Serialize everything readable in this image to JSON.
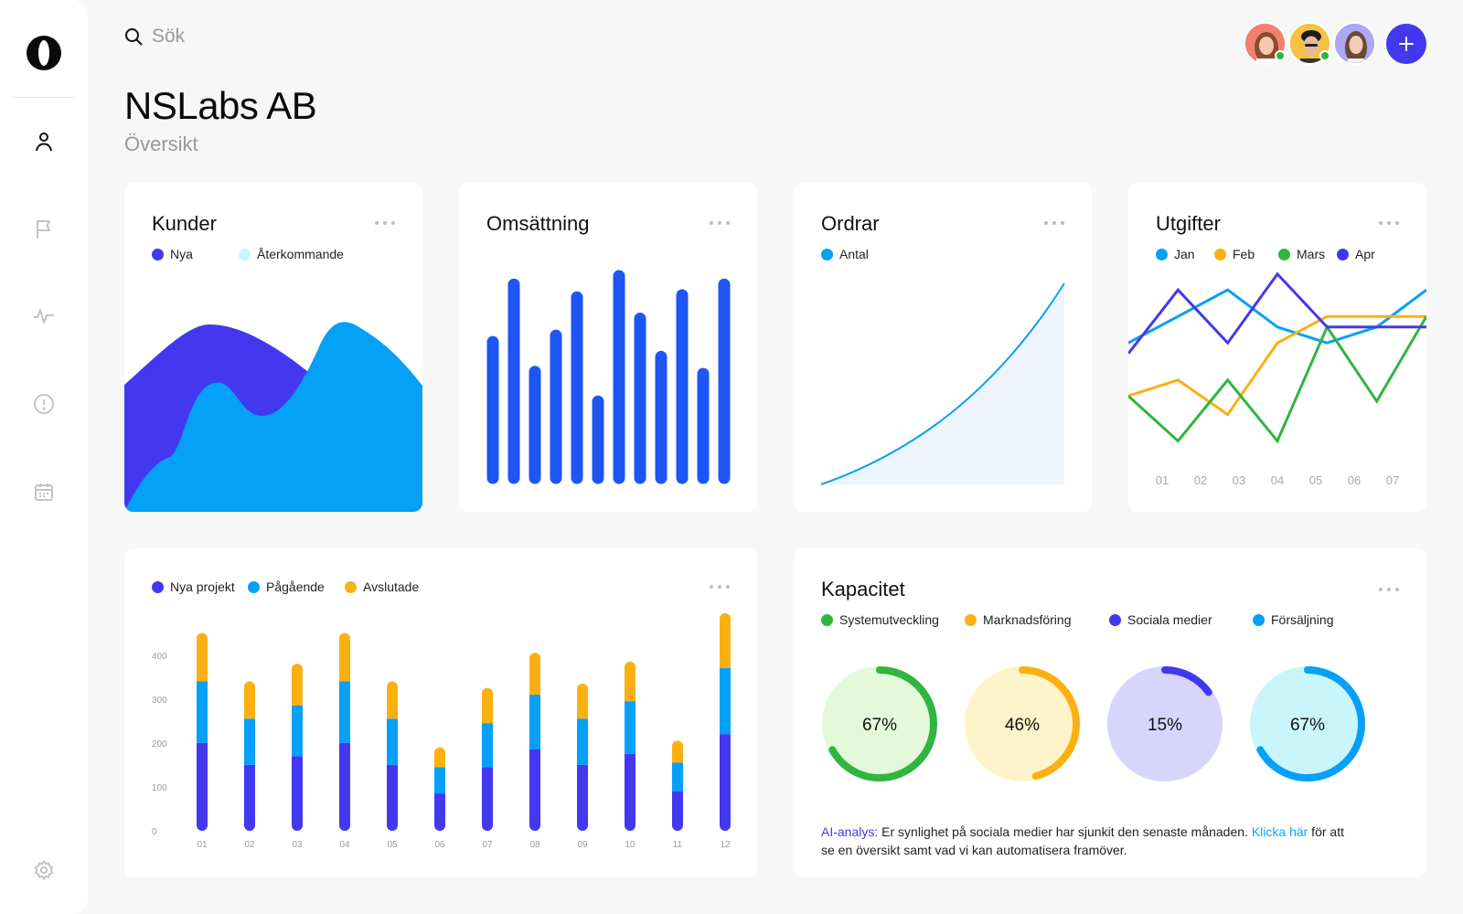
{
  "search": {
    "placeholder": "Sök"
  },
  "company": "NSLabs AB",
  "page_subtitle": "Översikt",
  "sidebar": {
    "items": [
      {
        "icon": "user-icon"
      },
      {
        "icon": "flag-icon"
      },
      {
        "icon": "activity-icon"
      },
      {
        "icon": "alert-icon"
      },
      {
        "icon": "calendar-icon"
      },
      {
        "icon": "settings-icon"
      }
    ]
  },
  "colors": {
    "purple": "#4338f0",
    "blue": "#05a0f8",
    "bar_blue": "#1e55f5",
    "orange": "#fbb012",
    "green": "#31b53f",
    "light_cyan": "#c9f6fb"
  },
  "cards": {
    "kunder": {
      "title": "Kunder",
      "legend": [
        "Nya",
        "Återkommande"
      ]
    },
    "omsattning": {
      "title": "Omsättning"
    },
    "ordrar": {
      "title": "Ordrar",
      "legend": [
        "Antal"
      ]
    },
    "utgifter": {
      "title": "Utgifter",
      "legend": [
        "Jan",
        "Feb",
        "Mars",
        "Apr"
      ]
    },
    "projekt": {
      "legend": [
        "Nya projekt",
        "Pågående",
        "Avslutade"
      ]
    },
    "kapacitet": {
      "title": "Kapacitet",
      "legend": [
        "Systemutveckling",
        "Marknadsföring",
        "Sociala medier",
        "Försäljning"
      ]
    }
  },
  "chart_data": [
    {
      "type": "area",
      "title": "Kunder",
      "series": [
        {
          "name": "Nya",
          "values": [
            45,
            72,
            58,
            70,
            48
          ]
        },
        {
          "name": "Återkommande",
          "values": [
            0,
            22,
            35,
            80,
            45
          ]
        }
      ]
    },
    {
      "type": "bar",
      "title": "Omsättning",
      "values": [
        70,
        97,
        56,
        73,
        91,
        42,
        101,
        81,
        63,
        92,
        55,
        97
      ]
    },
    {
      "type": "area",
      "title": "Ordrar",
      "series": [
        {
          "name": "Antal",
          "values": [
            0,
            4,
            11,
            23,
            40,
            62,
            100
          ]
        }
      ]
    },
    {
      "type": "line",
      "title": "Utgifter",
      "categories": [
        "01",
        "02",
        "03",
        "04",
        "05",
        "06",
        "07"
      ],
      "series": [
        {
          "name": "Jan",
          "values": [
            62,
            72,
            82,
            68,
            62,
            68,
            82
          ]
        },
        {
          "name": "Feb",
          "values": [
            42,
            48,
            35,
            62,
            72,
            72,
            72
          ]
        },
        {
          "name": "Mars",
          "values": [
            42,
            25,
            48,
            25,
            68,
            40,
            72
          ]
        },
        {
          "name": "Apr",
          "values": [
            58,
            82,
            62,
            88,
            68,
            68,
            68
          ]
        }
      ]
    },
    {
      "type": "bar",
      "stacked": true,
      "categories": [
        "01",
        "02",
        "03",
        "04",
        "05",
        "06",
        "07",
        "08",
        "09",
        "10",
        "11",
        "12"
      ],
      "y_ticks": [
        "0",
        "100",
        "200",
        "300",
        "400"
      ],
      "ylim": [
        0,
        500
      ],
      "series": [
        {
          "name": "Nya projekt",
          "values": [
            200,
            150,
            170,
            200,
            150,
            85,
            145,
            185,
            150,
            175,
            90,
            220
          ]
        },
        {
          "name": "Pågående",
          "values": [
            140,
            105,
            115,
            140,
            105,
            60,
            100,
            125,
            105,
            120,
            65,
            150
          ]
        },
        {
          "name": "Avslutade",
          "values": [
            110,
            85,
            95,
            110,
            85,
            45,
            80,
            95,
            80,
            90,
            50,
            125
          ]
        }
      ]
    },
    {
      "type": "pie",
      "title": "Kapacitet",
      "labels": [
        "Systemutveckling",
        "Marknadsföring",
        "Sociala medier",
        "Försäljning"
      ],
      "values": [
        67,
        46,
        15,
        67
      ],
      "display": [
        "67%",
        "46%",
        "15%",
        "67%"
      ]
    }
  ],
  "ai_analysis": {
    "tag": "AI-analys:",
    "text": " Er synlighet på sociala medier har sjunkit den senaste månaden. ",
    "link": "Klicka här",
    "text_after": " för att se en översikt samt vad vi kan automatisera framöver."
  }
}
